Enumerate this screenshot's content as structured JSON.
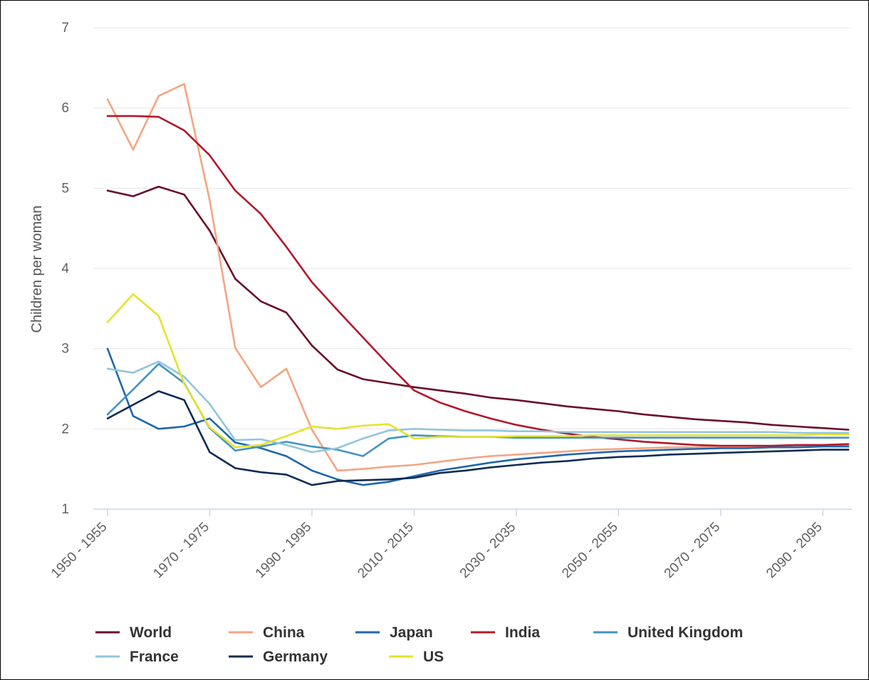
{
  "chart_data": {
    "type": "line",
    "title": "",
    "xlabel": "",
    "ylabel": "Children per woman",
    "ylim": [
      1,
      7
    ],
    "yticks": [
      1,
      2,
      3,
      4,
      5,
      6,
      7
    ],
    "grid": "horizontal",
    "legend_position": "bottom",
    "x": [
      "1950 - 1955",
      "1955 - 1960",
      "1960 - 1965",
      "1965 - 1970",
      "1970 - 1975",
      "1975 - 1980",
      "1980 - 1985",
      "1985 - 1990",
      "1990 - 1995",
      "1995 - 2000",
      "2000 - 2005",
      "2005 - 2010",
      "2010 - 2015",
      "2015 - 2020",
      "2020 - 2025",
      "2025 - 2030",
      "2030 - 2035",
      "2035 - 2040",
      "2040 - 2045",
      "2045 - 2050",
      "2050 - 2055",
      "2055 - 2060",
      "2060 - 2065",
      "2065 - 2070",
      "2070 - 2075",
      "2075 - 2080",
      "2080 - 2085",
      "2085 - 2090",
      "2090 - 2095",
      "2095 - 2100"
    ],
    "x_tick_labels": [
      "1950 - 1955",
      "1970 - 1975",
      "1990 - 1995",
      "2010 - 2015",
      "2030 - 2035",
      "2050 - 2055",
      "2070 - 2075",
      "2090 - 2095"
    ],
    "series": [
      {
        "name": "World",
        "color": "#6b0f2a",
        "values": [
          4.97,
          4.9,
          5.02,
          4.92,
          4.47,
          3.87,
          3.59,
          3.45,
          3.04,
          2.74,
          2.62,
          2.57,
          2.52,
          2.48,
          2.44,
          2.39,
          2.36,
          2.32,
          2.28,
          2.25,
          2.22,
          2.18,
          2.15,
          2.12,
          2.1,
          2.08,
          2.05,
          2.03,
          2.01,
          1.99
        ]
      },
      {
        "name": "China",
        "color": "#f4a582",
        "values": [
          6.11,
          5.48,
          6.15,
          6.3,
          4.85,
          3.01,
          2.52,
          2.75,
          1.99,
          1.48,
          1.5,
          1.53,
          1.55,
          1.59,
          1.63,
          1.66,
          1.68,
          1.7,
          1.72,
          1.74,
          1.75,
          1.76,
          1.77,
          1.77,
          1.78,
          1.78,
          1.78,
          1.79,
          1.79,
          1.79
        ]
      },
      {
        "name": "Japan",
        "color": "#2166ac",
        "values": [
          3.0,
          2.16,
          2.0,
          2.03,
          2.13,
          1.83,
          1.76,
          1.66,
          1.48,
          1.37,
          1.3,
          1.34,
          1.41,
          1.48,
          1.53,
          1.58,
          1.62,
          1.65,
          1.68,
          1.7,
          1.72,
          1.73,
          1.74,
          1.75,
          1.76,
          1.76,
          1.77,
          1.77,
          1.78,
          1.78
        ]
      },
      {
        "name": "India",
        "color": "#b2182b",
        "values": [
          5.9,
          5.9,
          5.89,
          5.72,
          5.41,
          4.97,
          4.68,
          4.27,
          3.83,
          3.48,
          3.14,
          2.8,
          2.48,
          2.33,
          2.22,
          2.13,
          2.05,
          1.99,
          1.94,
          1.9,
          1.87,
          1.84,
          1.82,
          1.8,
          1.79,
          1.79,
          1.79,
          1.8,
          1.8,
          1.81
        ]
      },
      {
        "name": "United Kingdom",
        "color": "#4393c3",
        "values": [
          2.18,
          2.49,
          2.81,
          2.57,
          2.01,
          1.73,
          1.78,
          1.84,
          1.78,
          1.74,
          1.66,
          1.88,
          1.92,
          1.91,
          1.9,
          1.9,
          1.89,
          1.89,
          1.89,
          1.89,
          1.89,
          1.89,
          1.89,
          1.89,
          1.89,
          1.89,
          1.89,
          1.89,
          1.89,
          1.89
        ]
      },
      {
        "name": "France",
        "color": "#92c5de",
        "values": [
          2.75,
          2.7,
          2.84,
          2.65,
          2.31,
          1.86,
          1.87,
          1.8,
          1.71,
          1.76,
          1.88,
          1.98,
          2.0,
          1.99,
          1.98,
          1.98,
          1.97,
          1.97,
          1.96,
          1.96,
          1.96,
          1.96,
          1.96,
          1.96,
          1.96,
          1.96,
          1.96,
          1.95,
          1.95,
          1.95
        ]
      },
      {
        "name": "Germany",
        "color": "#0d2c54",
        "values": [
          2.13,
          2.3,
          2.47,
          2.36,
          1.71,
          1.51,
          1.46,
          1.43,
          1.3,
          1.35,
          1.36,
          1.37,
          1.39,
          1.45,
          1.48,
          1.52,
          1.55,
          1.58,
          1.6,
          1.63,
          1.65,
          1.66,
          1.68,
          1.69,
          1.7,
          1.71,
          1.72,
          1.73,
          1.74,
          1.74
        ]
      },
      {
        "name": "US",
        "color": "#e6e22e",
        "values": [
          3.33,
          3.68,
          3.41,
          2.56,
          2.02,
          1.77,
          1.8,
          1.91,
          2.03,
          2.0,
          2.04,
          2.06,
          1.88,
          1.9,
          1.9,
          1.9,
          1.91,
          1.91,
          1.91,
          1.92,
          1.92,
          1.92,
          1.92,
          1.92,
          1.92,
          1.92,
          1.92,
          1.92,
          1.93,
          1.93
        ]
      }
    ]
  }
}
